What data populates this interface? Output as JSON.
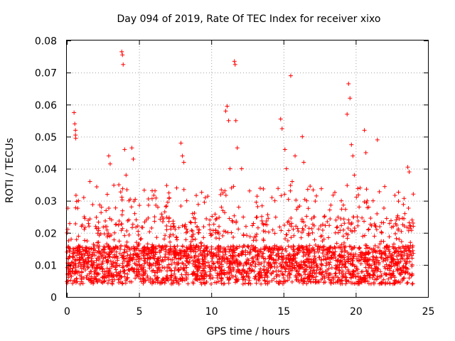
{
  "chart_data": {
    "type": "scatter",
    "title": "Day 094 of 2019, Rate Of TEC Index for receiver xixo",
    "xlabel": "GPS time / hours",
    "ylabel": "ROTI / TECUs",
    "xlim": [
      0,
      25
    ],
    "ylim": [
      0,
      0.08
    ],
    "xticks": [
      "0",
      "5",
      "10",
      "15",
      "20",
      "25"
    ],
    "yticks": [
      "0",
      "0.01",
      "0.02",
      "0.03",
      "0.04",
      "0.05",
      "0.06",
      "0.07",
      "0.08"
    ],
    "grid": true,
    "marker": "plus",
    "color": "#ff0000",
    "series": [
      {
        "x": [
          0.5,
          0.55,
          0.6,
          0.6,
          0.62,
          2.9,
          3.0,
          3.8,
          3.85,
          3.9,
          4.0,
          4.1,
          4.5,
          4.6,
          7.9,
          8.0,
          8.1,
          11.0,
          11.1,
          11.2,
          11.3,
          11.6,
          11.65,
          11.7,
          11.8,
          12.1,
          14.8,
          14.9,
          15.1,
          15.5,
          15.8,
          16.3,
          16.4,
          19.4,
          19.5,
          19.6,
          19.7,
          19.8,
          20.6,
          20.7,
          21.5,
          23.6,
          23.7,
          0.1,
          0.3,
          0.8,
          1.2,
          1.6,
          2.0,
          2.4,
          2.8,
          3.3,
          3.6,
          4.3,
          4.7,
          5.1,
          5.5,
          5.9,
          6.3,
          6.8,
          7.2,
          7.6,
          8.3,
          8.7,
          9.1,
          9.5,
          9.9,
          10.3,
          10.7,
          11.4,
          11.9,
          12.4,
          12.8,
          13.2,
          13.6,
          14.0,
          14.4,
          15.2,
          15.6,
          16.0,
          16.6,
          17.0,
          17.4,
          17.8,
          18.2,
          18.6,
          19.0,
          19.9,
          20.3,
          20.9,
          21.2,
          21.8,
          22.2,
          22.6,
          23.0,
          23.4,
          23.9
        ],
        "y": [
          0.0575,
          0.054,
          0.052,
          0.0505,
          0.0495,
          0.044,
          0.0415,
          0.0765,
          0.0755,
          0.0725,
          0.046,
          0.038,
          0.0465,
          0.043,
          0.048,
          0.044,
          0.042,
          0.058,
          0.0595,
          0.055,
          0.04,
          0.0735,
          0.0725,
          0.055,
          0.0465,
          0.04,
          0.0555,
          0.0525,
          0.046,
          0.069,
          0.044,
          0.05,
          0.042,
          0.057,
          0.0665,
          0.062,
          0.0475,
          0.044,
          0.052,
          0.045,
          0.049,
          0.0405,
          0.039,
          0.012,
          0.018,
          0.03,
          0.025,
          0.036,
          0.022,
          0.028,
          0.032,
          0.02,
          0.035,
          0.03,
          0.026,
          0.018,
          0.024,
          0.014,
          0.028,
          0.016,
          0.022,
          0.034,
          0.03,
          0.026,
          0.02,
          0.016,
          0.024,
          0.02,
          0.028,
          0.034,
          0.028,
          0.022,
          0.016,
          0.014,
          0.018,
          0.012,
          0.03,
          0.04,
          0.036,
          0.028,
          0.03,
          0.02,
          0.014,
          0.018,
          0.012,
          0.02,
          0.03,
          0.038,
          0.034,
          0.028,
          0.03,
          0.02,
          0.016,
          0.022,
          0.018,
          0.026,
          0.024
        ]
      }
    ]
  }
}
